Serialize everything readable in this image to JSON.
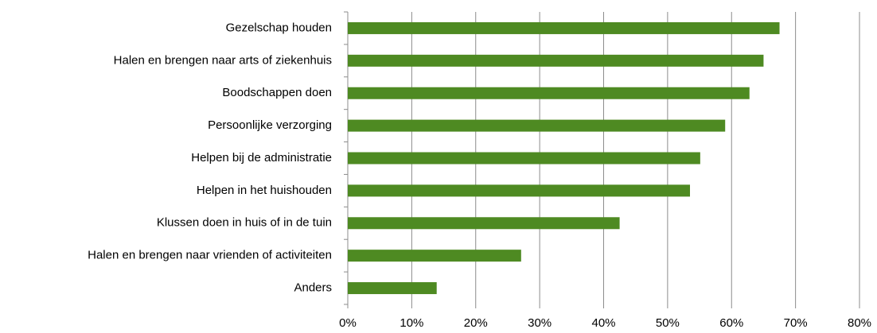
{
  "chart_data": {
    "type": "bar",
    "orientation": "horizontal",
    "categories": [
      "Gezelschap houden",
      "Halen en brengen naar arts of ziekenhuis",
      "Boodschappen doen",
      "Persoonlijke verzorging",
      "Helpen bij de administratie",
      "Helpen in het huishouden",
      "Klussen doen in huis of in de tuin",
      "Halen en brengen naar vrienden of activiteiten",
      "Anders"
    ],
    "values": [
      67.5,
      65,
      62.8,
      59,
      55.1,
      53.5,
      42.5,
      27.1,
      13.9
    ],
    "color": "#4e8a22",
    "xlim": [
      0,
      80
    ],
    "xticks": [
      {
        "value": 0,
        "label": "0%"
      },
      {
        "value": 10,
        "label": "10%"
      },
      {
        "value": 20,
        "label": "20%"
      },
      {
        "value": 30,
        "label": "30%"
      },
      {
        "value": 40,
        "label": "40%"
      },
      {
        "value": 50,
        "label": "50%"
      },
      {
        "value": 60,
        "label": "60%"
      },
      {
        "value": 70,
        "label": "70%"
      },
      {
        "value": 80,
        "label": "80%"
      }
    ],
    "grid": true
  }
}
